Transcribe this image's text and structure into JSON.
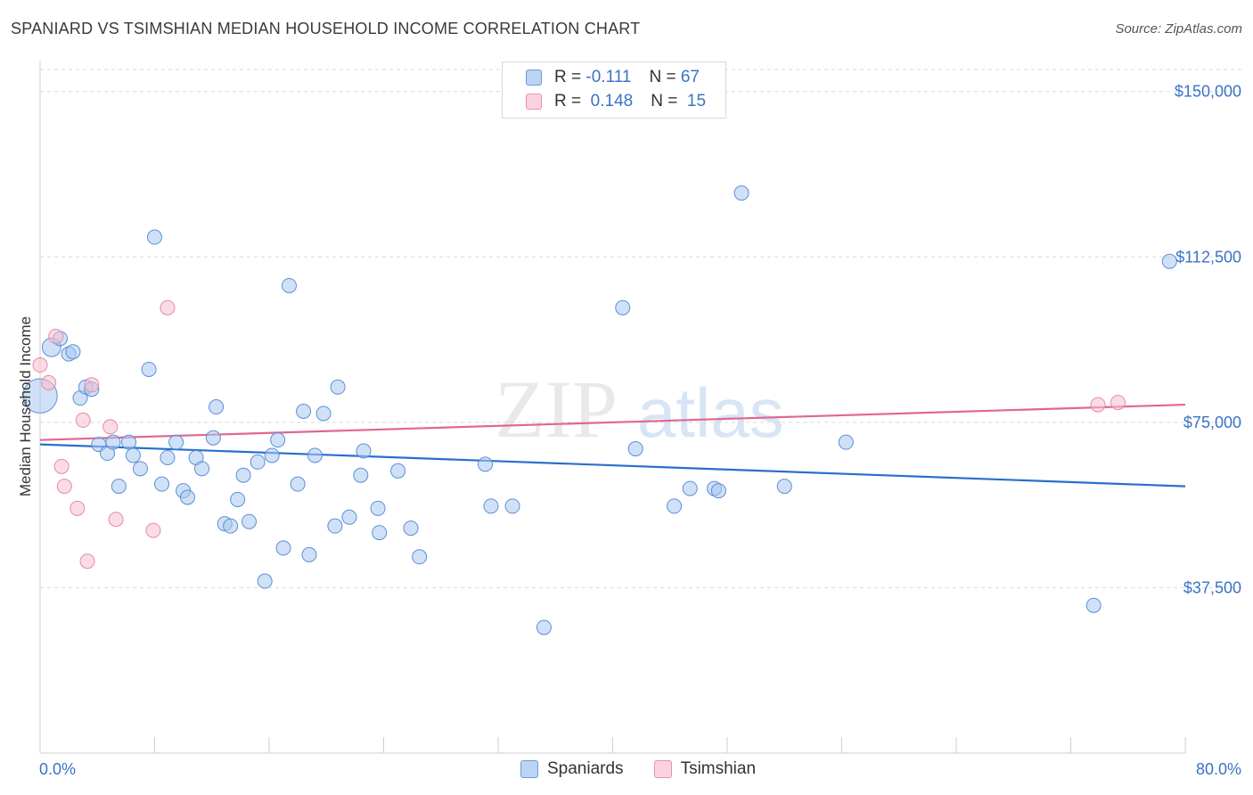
{
  "title": "SPANIARD VS TSIMSHIAN MEDIAN HOUSEHOLD INCOME CORRELATION CHART",
  "source": "Source: ZipAtlas.com",
  "watermark": {
    "zip": "ZIP",
    "atlas": "atlas"
  },
  "colors": {
    "blue_fill": "#a9c8f0",
    "blue_stroke": "#5b8fd6",
    "blue_line": "#2a6fcc",
    "pink_fill": "#f7bfd0",
    "pink_stroke": "#e58aa8",
    "pink_line": "#e0688f",
    "tick_text": "#3b73c4",
    "grid": "#d9d9d9"
  },
  "legend": {
    "rows": [
      {
        "r_label": "R =",
        "r_value": "-0.111",
        "n_label": "N =",
        "n_value": "67"
      },
      {
        "r_label": "R =",
        "r_value": "0.148",
        "n_label": "N =",
        "n_value": "15"
      }
    ]
  },
  "bottom_legend": [
    "Spaniards",
    "Tsimshian"
  ],
  "chart_data": {
    "type": "scatter",
    "title": "SPANIARD VS TSIMSHIAN MEDIAN HOUSEHOLD INCOME CORRELATION CHART",
    "xlabel": "",
    "ylabel": "Median Household Income",
    "xlim": [
      0,
      80
    ],
    "ylim": [
      0,
      155000
    ],
    "x_tick_labels": [
      "0.0%",
      "80.0%"
    ],
    "y_ticks": [
      37500,
      75000,
      112500,
      150000
    ],
    "y_tick_labels": [
      "$37,500",
      "$75,000",
      "$112,500",
      "$150,000"
    ],
    "grid": true,
    "legend_position": "top-center",
    "series": [
      {
        "name": "Spaniards",
        "r": -0.111,
        "n": 67,
        "trend": [
          [
            0,
            70000
          ],
          [
            80,
            60500
          ]
        ],
        "points": [
          [
            0.0,
            81000,
            2.4
          ],
          [
            0.8,
            92000,
            1.3
          ],
          [
            1.4,
            94000,
            1.0
          ],
          [
            2.0,
            90500,
            1.0
          ],
          [
            2.3,
            91000,
            1.0
          ],
          [
            2.8,
            80500,
            1.0
          ],
          [
            3.2,
            83000,
            1.0
          ],
          [
            3.6,
            82500,
            1.0
          ],
          [
            4.1,
            70000,
            1.0
          ],
          [
            4.7,
            68000,
            1.0
          ],
          [
            5.1,
            70500,
            1.0
          ],
          [
            5.5,
            60500,
            1.0
          ],
          [
            6.2,
            70500,
            1.0
          ],
          [
            6.5,
            67500,
            1.0
          ],
          [
            7.0,
            64500,
            1.0
          ],
          [
            7.6,
            87000,
            1.0
          ],
          [
            8.0,
            117000,
            1.0
          ],
          [
            8.5,
            61000,
            1.0
          ],
          [
            8.9,
            67000,
            1.0
          ],
          [
            9.5,
            70500,
            1.0
          ],
          [
            10.0,
            59500,
            1.0
          ],
          [
            10.3,
            58000,
            1.0
          ],
          [
            10.9,
            67000,
            1.0
          ],
          [
            11.3,
            64500,
            1.0
          ],
          [
            12.1,
            71500,
            1.0
          ],
          [
            12.3,
            78500,
            1.0
          ],
          [
            12.9,
            52000,
            1.0
          ],
          [
            13.3,
            51500,
            1.0
          ],
          [
            13.8,
            57500,
            1.0
          ],
          [
            14.2,
            63000,
            1.0
          ],
          [
            14.6,
            52500,
            1.0
          ],
          [
            15.2,
            66000,
            1.0
          ],
          [
            15.7,
            39000,
            1.0
          ],
          [
            16.2,
            67500,
            1.0
          ],
          [
            16.6,
            71000,
            1.0
          ],
          [
            17.0,
            46500,
            1.0
          ],
          [
            17.4,
            106000,
            1.0
          ],
          [
            18.0,
            61000,
            1.0
          ],
          [
            18.4,
            77500,
            1.0
          ],
          [
            18.8,
            45000,
            1.0
          ],
          [
            19.2,
            67500,
            1.0
          ],
          [
            19.8,
            77000,
            1.0
          ],
          [
            20.8,
            83000,
            1.0
          ],
          [
            20.6,
            51500,
            1.0
          ],
          [
            21.6,
            53500,
            1.0
          ],
          [
            22.4,
            63000,
            1.0
          ],
          [
            22.6,
            68500,
            1.0
          ],
          [
            23.6,
            55500,
            1.0
          ],
          [
            23.7,
            50000,
            1.0
          ],
          [
            25.0,
            64000,
            1.0
          ],
          [
            25.9,
            51000,
            1.0
          ],
          [
            26.5,
            44500,
            1.0
          ],
          [
            31.1,
            65500,
            1.0
          ],
          [
            31.5,
            56000,
            1.0
          ],
          [
            33.0,
            56000,
            1.0
          ],
          [
            35.2,
            28500,
            1.0
          ],
          [
            40.7,
            101000,
            1.0
          ],
          [
            41.6,
            69000,
            1.0
          ],
          [
            44.3,
            56000,
            1.0
          ],
          [
            45.4,
            60000,
            1.0
          ],
          [
            47.1,
            60000,
            1.0
          ],
          [
            47.4,
            59500,
            1.0
          ],
          [
            49.0,
            127000,
            1.0
          ],
          [
            52.0,
            60500,
            1.0
          ],
          [
            56.3,
            70500,
            1.0
          ],
          [
            73.6,
            33500,
            1.0
          ],
          [
            78.9,
            111500,
            1.0
          ]
        ]
      },
      {
        "name": "Tsimshian",
        "r": 0.148,
        "n": 15,
        "trend": [
          [
            0,
            71000
          ],
          [
            80,
            79000
          ]
        ],
        "points": [
          [
            0.0,
            88000,
            1.0
          ],
          [
            0.6,
            84000,
            1.0
          ],
          [
            1.1,
            94500,
            1.0
          ],
          [
            1.5,
            65000,
            1.0
          ],
          [
            1.7,
            60500,
            1.0
          ],
          [
            2.6,
            55500,
            1.0
          ],
          [
            3.0,
            75500,
            1.0
          ],
          [
            3.3,
            43500,
            1.0
          ],
          [
            3.6,
            83500,
            1.0
          ],
          [
            4.9,
            74000,
            1.0
          ],
          [
            5.3,
            53000,
            1.0
          ],
          [
            7.9,
            50500,
            1.0
          ],
          [
            8.9,
            101000,
            1.0
          ],
          [
            73.9,
            79000,
            1.0
          ],
          [
            75.3,
            79500,
            1.0
          ]
        ]
      }
    ]
  }
}
